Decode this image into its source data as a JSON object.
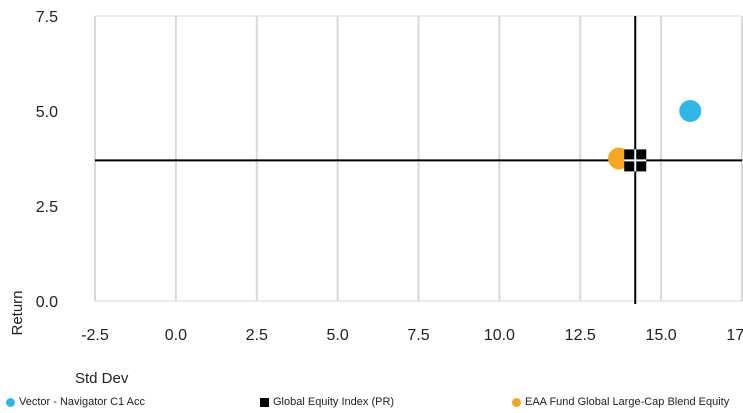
{
  "chart_data": {
    "type": "scatter",
    "xlabel": "Std Dev",
    "ylabel": "Return",
    "xlim": [
      -2.5,
      17.5
    ],
    "ylim": [
      0.0,
      7.5
    ],
    "x_ticks": [
      "-2.5",
      "0.0",
      "2.5",
      "5.0",
      "7.5",
      "10.0",
      "12.5",
      "15.0",
      "17.5"
    ],
    "y_ticks": [
      "0.0",
      "2.5",
      "5.0",
      "7.5"
    ],
    "grid": "vertical",
    "legend_position": "bottom",
    "series": [
      {
        "name": "Vector - Navigator C1 Acc",
        "marker": "circle",
        "color": "#2fb6e6",
        "x": 15.9,
        "y": 5.0
      },
      {
        "name": "Global Equity Index (PR)",
        "marker": "square",
        "color": "#000000",
        "x": 14.2,
        "y": 3.7
      },
      {
        "name": "EAA Fund Global Large-Cap Blend Equity",
        "marker": "circle",
        "color": "#f5a623",
        "x": 13.7,
        "y": 3.75
      }
    ],
    "crosshair": {
      "x": 14.2,
      "y": 3.7,
      "color": "#000000"
    }
  }
}
